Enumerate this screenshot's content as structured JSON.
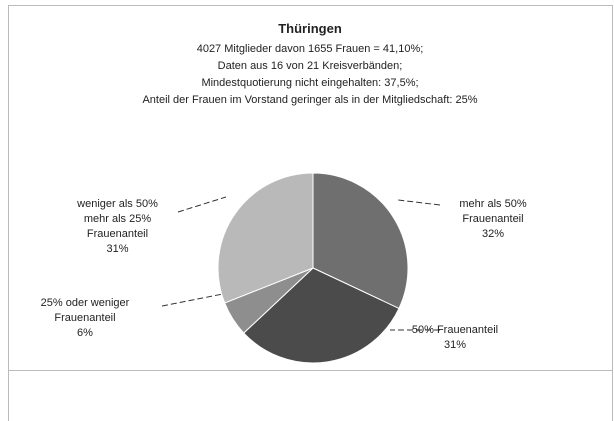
{
  "chart_data": {
    "type": "pie",
    "title": "Thüringen",
    "subtitle": [
      "4027 Mitglieder davon 1655 Frauen = 41,10%;",
      "Daten aus 16 von 21 Kreisverbänden;",
      "Mindestquotierung nicht eingehalten: 37,5%;",
      "Anteil der Frauen im Vorstand geringer als in der Mitgliedschaft: 25%"
    ],
    "categories": [
      "mehr als 50% Frauenanteil",
      "50% Frauenanteil",
      "25% oder weniger Frauenanteil",
      "weniger als 50% mehr als 25% Frauenanteil"
    ],
    "values": [
      32,
      31,
      6,
      31
    ],
    "value_labels": [
      "32%",
      "31%",
      "6%",
      "31%"
    ],
    "colors": [
      "#6f6f6f",
      "#4b4b4b",
      "#8e8e8e",
      "#b9b9b9"
    ]
  }
}
